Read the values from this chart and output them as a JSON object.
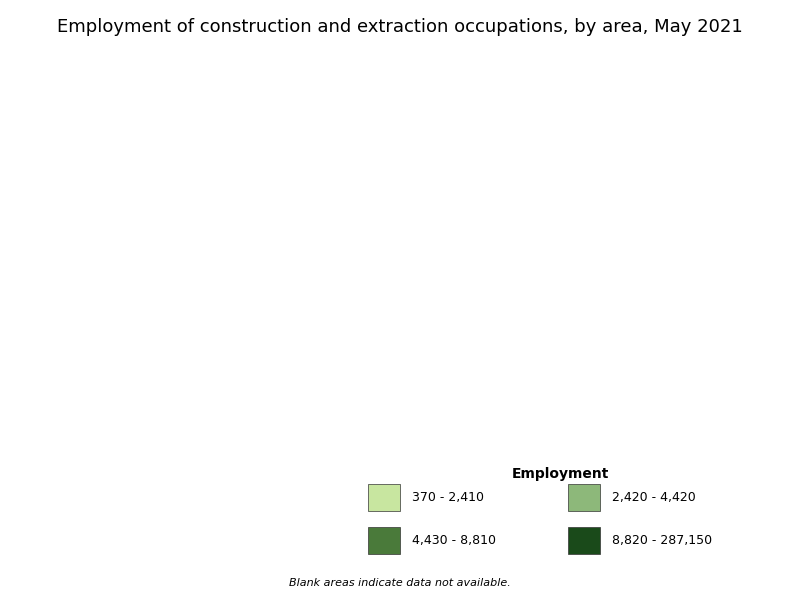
{
  "title": "Employment of construction and extraction occupations, by area, May 2021",
  "legend_title": "Employment",
  "legend_labels": [
    "370 - 2,410",
    "2,420 - 4,420",
    "4,430 - 8,810",
    "8,820 - 287,150"
  ],
  "legend_colors": [
    "#c8e6a0",
    "#8db87a",
    "#4a7a3a",
    "#1a4a1a"
  ],
  "background_color": "#ffffff",
  "title_fontsize": 13,
  "note_text": "Blank areas indicate data not available.",
  "figsize": [
    8.0,
    6.0
  ],
  "dpi": 100
}
